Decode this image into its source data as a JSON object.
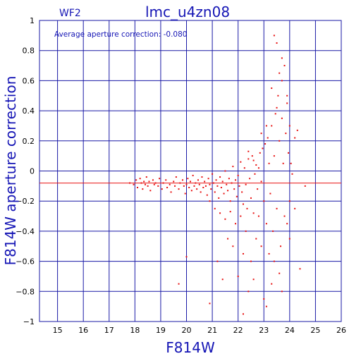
{
  "chart_data": {
    "type": "scatter",
    "panel_label": "WF2",
    "title": "lmc_u4zn08",
    "annotation": "Average aperture correction: -0.080",
    "xlabel": "F814W",
    "ylabel": "F814W aperture correction",
    "xlim": [
      14.3,
      26
    ],
    "ylim": [
      -1,
      1
    ],
    "xticks": [
      15,
      16,
      17,
      18,
      19,
      20,
      21,
      22,
      23,
      24,
      25,
      26
    ],
    "yticks": [
      -1,
      -0.8,
      -0.6,
      -0.4,
      -0.2,
      0,
      0.2,
      0.4,
      0.6,
      0.8,
      1
    ],
    "ytick_labels": [
      "−1",
      "−0.8",
      "−0.6",
      "−0.4",
      "−0.2",
      "0",
      "0.2",
      "0.4",
      "0.6",
      "0.8",
      "1"
    ],
    "grid": true,
    "average_line": -0.08,
    "colors": {
      "axes": "#1a1aa6",
      "grid": "#1a1aa6",
      "points": "#e81010",
      "avg_line": "#e81010",
      "labels": "#1515b5"
    },
    "points": [
      [
        17.8,
        -0.08
      ],
      [
        17.95,
        -0.09
      ],
      [
        18.05,
        -0.06
      ],
      [
        18.1,
        -0.11
      ],
      [
        18.2,
        -0.05
      ],
      [
        18.25,
        -0.08
      ],
      [
        18.3,
        -0.12
      ],
      [
        18.35,
        -0.07
      ],
      [
        18.4,
        -0.09
      ],
      [
        18.45,
        -0.04
      ],
      [
        18.5,
        -0.1
      ],
      [
        18.55,
        -0.07
      ],
      [
        18.6,
        -0.13
      ],
      [
        18.7,
        -0.06
      ],
      [
        18.75,
        -0.09
      ],
      [
        18.8,
        -0.08
      ],
      [
        18.9,
        -0.1
      ],
      [
        18.95,
        -0.05
      ],
      [
        19.05,
        -0.12
      ],
      [
        19.1,
        -0.08
      ],
      [
        19.2,
        -0.06
      ],
      [
        19.25,
        -0.11
      ],
      [
        19.35,
        -0.09
      ],
      [
        19.4,
        -0.14
      ],
      [
        19.5,
        -0.07
      ],
      [
        19.55,
        -0.1
      ],
      [
        19.6,
        -0.04
      ],
      [
        19.7,
        -0.12
      ],
      [
        19.75,
        -0.08
      ],
      [
        19.85,
        -0.06
      ],
      [
        19.9,
        -0.1
      ],
      [
        19.95,
        -0.15
      ],
      [
        20.0,
        -0.09
      ],
      [
        20.05,
        -0.05
      ],
      [
        20.1,
        -0.11
      ],
      [
        20.15,
        -0.07
      ],
      [
        20.2,
        -0.13
      ],
      [
        20.25,
        -0.03
      ],
      [
        20.3,
        -0.1
      ],
      [
        20.35,
        -0.08
      ],
      [
        20.4,
        -0.12
      ],
      [
        20.45,
        -0.06
      ],
      [
        20.5,
        -0.09
      ],
      [
        20.55,
        -0.14
      ],
      [
        20.6,
        -0.04
      ],
      [
        20.65,
        -0.11
      ],
      [
        20.7,
        -0.07
      ],
      [
        20.75,
        -0.1
      ],
      [
        20.8,
        -0.16
      ],
      [
        20.85,
        -0.05
      ],
      [
        20.9,
        -0.09
      ],
      [
        20.95,
        -0.12
      ],
      [
        21.0,
        -0.02
      ],
      [
        21.05,
        -0.08
      ],
      [
        21.1,
        -0.14
      ],
      [
        21.15,
        -0.06
      ],
      [
        21.2,
        -0.1
      ],
      [
        21.25,
        -0.18
      ],
      [
        21.3,
        -0.04
      ],
      [
        21.35,
        -0.11
      ],
      [
        21.4,
        -0.07
      ],
      [
        21.45,
        -0.15
      ],
      [
        21.5,
        0.0
      ],
      [
        21.55,
        -0.09
      ],
      [
        21.6,
        -0.13
      ],
      [
        21.65,
        -0.05
      ],
      [
        21.7,
        -0.2
      ],
      [
        21.75,
        -0.08
      ],
      [
        21.8,
        0.03
      ],
      [
        21.85,
        -0.12
      ],
      [
        21.9,
        -0.06
      ],
      [
        21.95,
        -0.17
      ],
      [
        22.0,
        -0.03
      ],
      [
        22.05,
        -0.1
      ],
      [
        22.1,
        0.06
      ],
      [
        22.15,
        -0.14
      ],
      [
        22.2,
        -0.22
      ],
      [
        22.25,
        0.02
      ],
      [
        22.3,
        -0.09
      ],
      [
        22.35,
        -0.25
      ],
      [
        22.4,
        0.08
      ],
      [
        22.45,
        -0.05
      ],
      [
        22.5,
        -0.18
      ],
      [
        22.55,
        0.1
      ],
      [
        22.6,
        -0.28
      ],
      [
        22.65,
        -0.02
      ],
      [
        22.7,
        0.04
      ],
      [
        22.75,
        -0.12
      ],
      [
        22.8,
        -0.3
      ],
      [
        22.85,
        0.12
      ],
      [
        22.9,
        -0.07
      ],
      [
        22.95,
        0.15
      ],
      [
        23.0,
        -0.2
      ],
      [
        23.05,
        0.18
      ],
      [
        23.1,
        -0.35
      ],
      [
        23.15,
        0.22
      ],
      [
        23.2,
        0.05
      ],
      [
        23.25,
        -0.15
      ],
      [
        23.3,
        0.3
      ],
      [
        23.35,
        -0.4
      ],
      [
        23.4,
        0.1
      ],
      [
        23.45,
        0.38
      ],
      [
        23.5,
        -0.25
      ],
      [
        23.55,
        0.5
      ],
      [
        23.6,
        0.2
      ],
      [
        23.65,
        -0.5
      ],
      [
        23.7,
        0.6
      ],
      [
        23.75,
        0.05
      ],
      [
        23.8,
        -0.3
      ],
      [
        23.85,
        0.25
      ],
      [
        23.9,
        0.45
      ],
      [
        24.0,
        -0.2
      ],
      [
        20.9,
        -0.2
      ],
      [
        21.1,
        -0.25
      ],
      [
        21.3,
        -0.28
      ],
      [
        21.5,
        -0.32
      ],
      [
        21.7,
        -0.27
      ],
      [
        21.9,
        -0.35
      ],
      [
        22.1,
        -0.3
      ],
      [
        22.3,
        -0.4
      ],
      [
        21.6,
        -0.45
      ],
      [
        21.8,
        -0.5
      ],
      [
        22.2,
        -0.55
      ],
      [
        22.5,
        -0.6
      ],
      [
        22.7,
        -0.45
      ],
      [
        22.9,
        -0.5
      ],
      [
        23.2,
        -0.55
      ],
      [
        23.4,
        -0.6
      ],
      [
        22.0,
        -0.7
      ],
      [
        22.4,
        -0.8
      ],
      [
        22.6,
        -0.72
      ],
      [
        23.0,
        -0.85
      ],
      [
        23.3,
        -0.75
      ],
      [
        23.6,
        -0.68
      ],
      [
        22.2,
        -0.95
      ],
      [
        23.1,
        -0.9
      ],
      [
        19.7,
        -0.75
      ],
      [
        20.0,
        -0.57
      ],
      [
        20.9,
        -0.88
      ],
      [
        21.2,
        -0.6
      ],
      [
        21.4,
        -0.72
      ],
      [
        23.7,
        -0.8
      ],
      [
        24.4,
        -0.65
      ],
      [
        23.5,
        0.85
      ],
      [
        23.7,
        0.75
      ],
      [
        23.4,
        0.9
      ],
      [
        23.8,
        0.7
      ],
      [
        23.6,
        0.65
      ],
      [
        23.3,
        0.55
      ],
      [
        23.9,
        0.5
      ],
      [
        23.5,
        0.42
      ],
      [
        23.1,
        0.3
      ],
      [
        22.9,
        0.25
      ],
      [
        23.7,
        0.35
      ],
      [
        24.0,
        0.3
      ],
      [
        24.3,
        0.27
      ],
      [
        24.2,
        0.22
      ],
      [
        23.95,
        0.12
      ],
      [
        24.05,
        0.05
      ],
      [
        24.1,
        -0.02
      ],
      [
        24.6,
        -0.1
      ],
      [
        24.2,
        -0.25
      ],
      [
        23.9,
        -0.35
      ],
      [
        24.0,
        -0.45
      ],
      [
        22.8,
        0.02
      ],
      [
        22.6,
        0.07
      ],
      [
        22.4,
        0.13
      ]
    ]
  }
}
